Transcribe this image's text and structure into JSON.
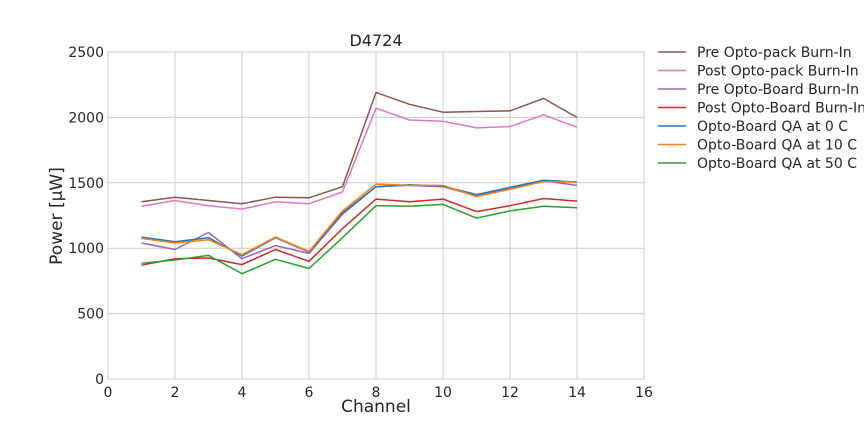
{
  "chart_data": {
    "type": "line",
    "title": "D4724",
    "xlabel": "Channel",
    "ylabel": "Power [μW]",
    "xlim": [
      0,
      16
    ],
    "ylim": [
      0,
      2500
    ],
    "xticks": [
      "0",
      "2",
      "4",
      "6",
      "8",
      "10",
      "12",
      "14",
      "16"
    ],
    "yticks": [
      "0",
      "500",
      "1000",
      "1500",
      "2000",
      "2500"
    ],
    "grid": true,
    "legend_position": "outside-right",
    "x": [
      1,
      2,
      3,
      4,
      5,
      6,
      7,
      8,
      9,
      10,
      11,
      12,
      13,
      14
    ],
    "series": [
      {
        "name": "Pre Opto-pack Burn-In",
        "color": "#8c564b",
        "values": [
          1355,
          1390,
          1365,
          1340,
          1390,
          1385,
          1470,
          2190,
          2100,
          2040,
          2045,
          2050,
          2145,
          2000
        ]
      },
      {
        "name": "Post Opto-pack Burn-In",
        "color": "#e377c2",
        "values": [
          1320,
          1365,
          1325,
          1300,
          1355,
          1340,
          1430,
          2070,
          1980,
          1970,
          1920,
          1930,
          2020,
          1925
        ]
      },
      {
        "name": "Pre Opto-Board Burn-In",
        "color": "#9467bd",
        "values": [
          1040,
          990,
          1120,
          920,
          1020,
          960,
          1260,
          1470,
          1480,
          1470,
          1400,
          1460,
          1515,
          1480
        ]
      },
      {
        "name": "Post Opto-Board Burn-In",
        "color": "#d62728",
        "values": [
          870,
          920,
          925,
          875,
          990,
          900,
          1150,
          1375,
          1355,
          1375,
          1280,
          1325,
          1380,
          1360
        ]
      },
      {
        "name": "Opto-Board QA at 0 C",
        "color": "#1f77b4",
        "values": [
          1085,
          1050,
          1080,
          940,
          1080,
          970,
          1270,
          1470,
          1485,
          1475,
          1410,
          1465,
          1520,
          1505
        ]
      },
      {
        "name": "Opto-Board QA at 10 C",
        "color": "#ff7f0e",
        "values": [
          1075,
          1040,
          1065,
          950,
          1085,
          975,
          1285,
          1490,
          1480,
          1480,
          1395,
          1450,
          1510,
          1505
        ]
      },
      {
        "name": "Opto-Board QA at 50 C",
        "color": "#2ca02c",
        "values": [
          885,
          910,
          945,
          805,
          915,
          845,
          1080,
          1325,
          1320,
          1335,
          1230,
          1285,
          1320,
          1310
        ]
      }
    ]
  }
}
